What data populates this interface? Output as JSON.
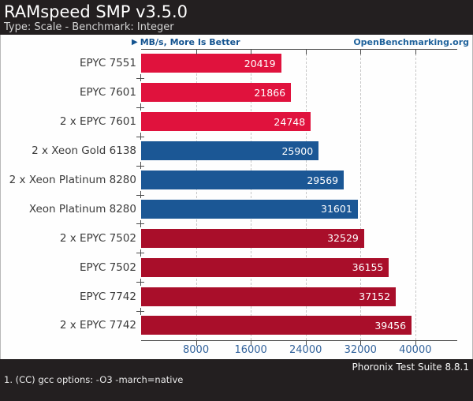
{
  "header": {
    "title": "RAMspeed SMP v3.5.0",
    "subtitle": "Type: Scale - Benchmark: Integer"
  },
  "meta": {
    "scale_label": "MB/s, More Is Better",
    "scale_icon": "play-triangle-icon",
    "site_link": "OpenBenchmarking.org"
  },
  "chart_data": {
    "type": "bar",
    "orientation": "horizontal",
    "title": "RAMspeed SMP v3.5.0",
    "subtitle": "Type: Scale - Benchmark: Integer",
    "xlabel": "MB/s, More Is Better",
    "categories": [
      "EPYC 7551",
      "EPYC 7601",
      "2 x EPYC 7601",
      "2 x Xeon Gold 6138",
      "2 x Xeon Platinum 8280",
      "Xeon Platinum 8280",
      "2 x EPYC 7502",
      "EPYC 7502",
      "EPYC 7742",
      "2 x EPYC 7742"
    ],
    "values": [
      20419,
      21866,
      24748,
      25900,
      29569,
      31601,
      32529,
      36155,
      37152,
      39456
    ],
    "bar_colors": [
      "#e0123d",
      "#e0123d",
      "#e0123d",
      "#1b5795",
      "#1b5795",
      "#1b5795",
      "#a90e2a",
      "#a90e2a",
      "#a90e2a",
      "#a90e2a"
    ],
    "xlim": [
      0,
      46000
    ],
    "xticks": [
      8000,
      16000,
      24000,
      32000,
      40000
    ],
    "grid": "dashed-vertical",
    "legend": "none",
    "value_labels": "inside-end-white"
  },
  "colors": {
    "header_bg": "#231f20",
    "footer_bg": "#231f20",
    "bright_red": "#e0123d",
    "blue": "#1b5795",
    "dark_red": "#a90e2a",
    "accent_blue": "#1c5491"
  },
  "footer": {
    "suite": "Phoronix Test Suite 8.8.1",
    "footnote": "1. (CC) gcc options: -O3 -march=native"
  }
}
